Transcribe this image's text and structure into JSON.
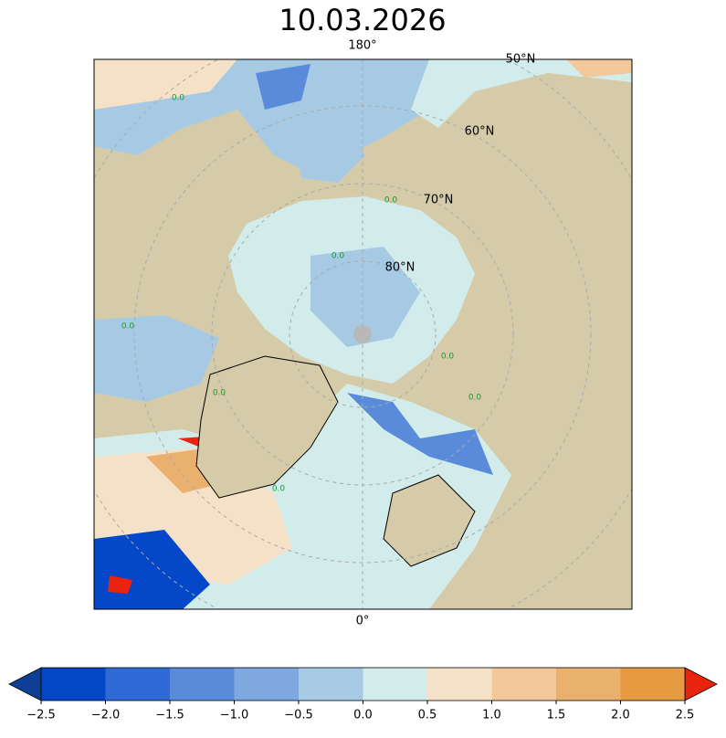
{
  "header": {
    "title": "10.03.2026"
  },
  "map": {
    "meridian_labels": [
      "180°",
      "0°"
    ],
    "latitude_labels": [
      "50°N",
      "60°N",
      "70°N",
      "80°N"
    ],
    "contour_labels": [
      "0.0",
      "0.0",
      "0.0",
      "0.0",
      "0.0",
      "0.0",
      "0.0",
      "0.0"
    ]
  },
  "colorbar": {
    "levels": [
      {
        "value": -2.5,
        "label": "−2.5"
      },
      {
        "value": -2.0,
        "label": "−2.0"
      },
      {
        "value": -1.5,
        "label": "−1.5"
      },
      {
        "value": -1.0,
        "label": "−1.0"
      },
      {
        "value": -0.5,
        "label": "−0.5"
      },
      {
        "value": 0.0,
        "label": "0.0"
      },
      {
        "value": 0.5,
        "label": "0.5"
      },
      {
        "value": 1.0,
        "label": "1.0"
      },
      {
        "value": 1.5,
        "label": "1.5"
      },
      {
        "value": 2.0,
        "label": "2.0"
      },
      {
        "value": 2.5,
        "label": "2.5"
      }
    ],
    "colors": [
      "#0447c8",
      "#2f6ad6",
      "#5a8bdb",
      "#7ea8df",
      "#a6cae3",
      "#d2ecec",
      "#f5e0c8",
      "#f2c799",
      "#eab06e",
      "#e69a42"
    ],
    "under_color": "#0d3f94",
    "over_color": "#e8240f"
  }
}
